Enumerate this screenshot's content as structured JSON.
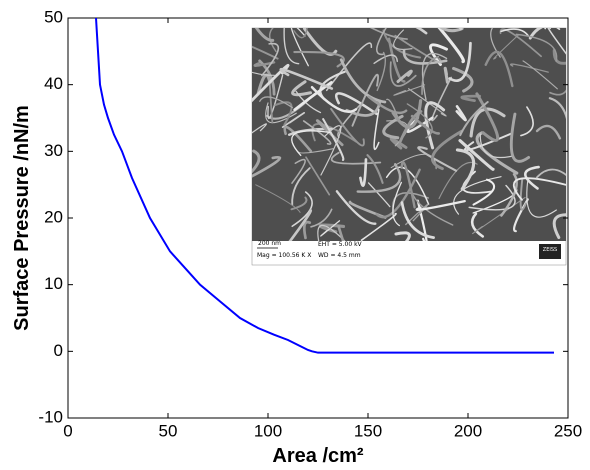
{
  "chart_data": {
    "type": "line",
    "x_label": "Area /cm²",
    "y_label": "Surface Pressure /nN/m",
    "x": [
      14,
      15,
      16,
      18,
      20,
      23,
      27,
      32,
      41,
      51,
      60,
      66,
      76,
      86,
      95,
      103,
      110,
      116,
      120,
      122,
      125,
      140,
      160,
      180,
      200,
      220,
      243
    ],
    "values": [
      50,
      45,
      40,
      37,
      35,
      32.5,
      30,
      26,
      20,
      15,
      12,
      10,
      7.5,
      5,
      3.5,
      2.5,
      1.7,
      0.8,
      0.2,
      0,
      -0.2,
      -0.2,
      -0.2,
      -0.2,
      -0.2,
      -0.2,
      -0.2
    ],
    "color": "#0000ff",
    "xlim": [
      0,
      250
    ],
    "xticks": [
      0,
      50,
      100,
      150,
      200,
      250
    ],
    "ylim": [
      -10,
      50
    ],
    "yticks": [
      -10,
      0,
      10,
      20,
      30,
      40,
      50
    ],
    "inset": {
      "scale_bar": "200 nm",
      "magnification": "Mag = 100.56 K X",
      "eht": "EHT = 5.00 kV",
      "wd": "WD = 4.5 mm",
      "logo": "ZEISS"
    }
  }
}
